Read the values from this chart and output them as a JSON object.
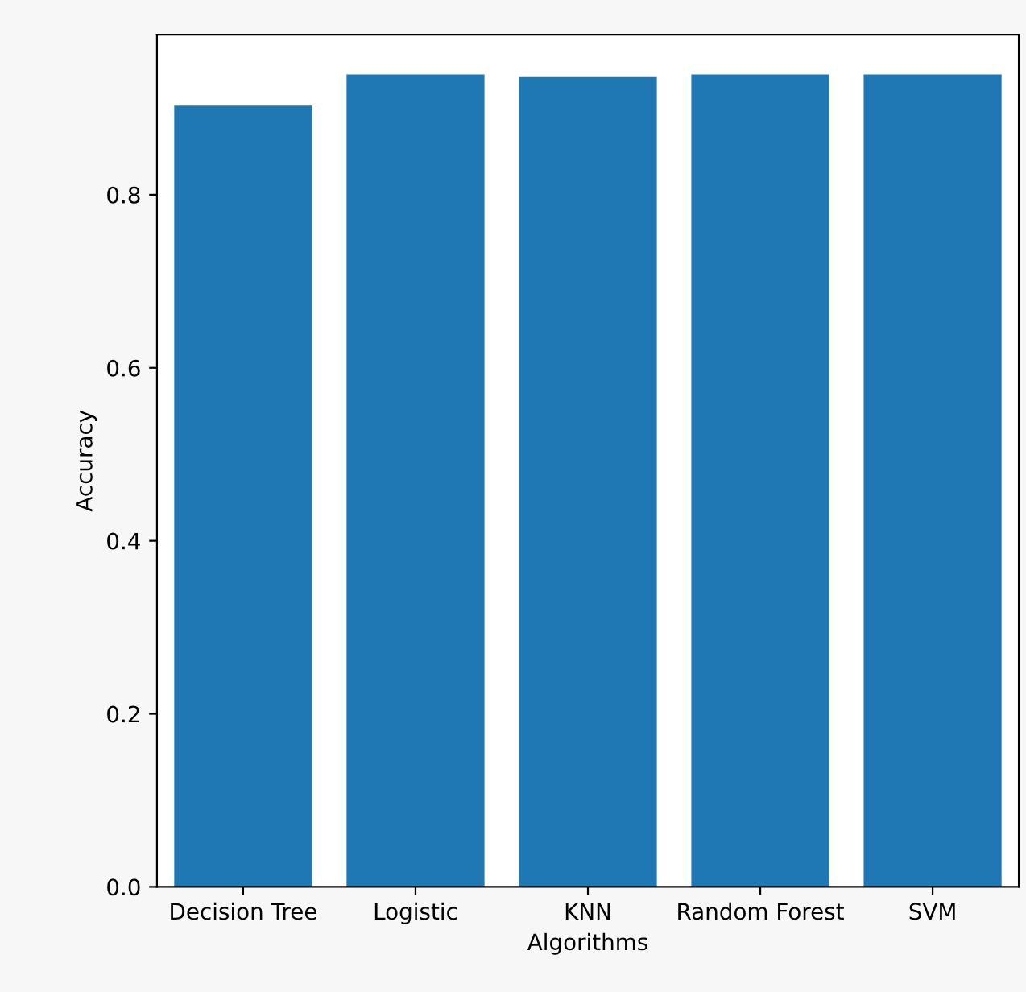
{
  "chart_data": {
    "type": "bar",
    "xlabel": "Algorithms",
    "ylabel": "Accuracy",
    "categories": [
      "Decision Tree",
      "Logistic",
      "KNN",
      "Random Forest",
      "SVM"
    ],
    "values": [
      0.903,
      0.939,
      0.936,
      0.939,
      0.939
    ],
    "color": "#1f77b4",
    "ylim": [
      0,
      0.985
    ],
    "yticks": [
      {
        "value": 0,
        "label": "0.0"
      },
      0.2,
      0.4,
      0.6,
      0.8
    ],
    "grid": false
  }
}
